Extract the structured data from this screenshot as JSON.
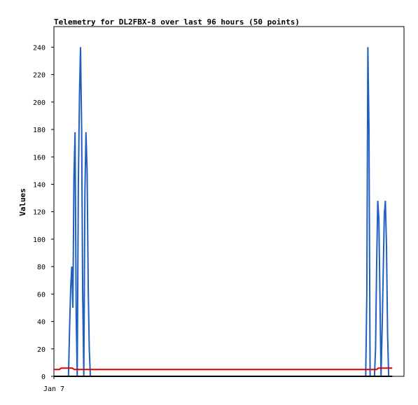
{
  "chart_data": {
    "type": "line",
    "title": "Telemetry for DL2FBX-8 over last 96 hours (50 points)",
    "xlabel": "",
    "ylabel": "Values",
    "x_tick_labels": [
      "Jan 7"
    ],
    "ylim": [
      0,
      255
    ],
    "y_ticks": [
      0,
      20,
      40,
      60,
      80,
      100,
      120,
      140,
      160,
      180,
      200,
      220,
      240
    ],
    "grid": false,
    "legend": "none",
    "x_range_hours": [
      0,
      96
    ],
    "series": [
      {
        "color": "#1f5fbf",
        "x": [
          4.0,
          4.3,
          4.6,
          4.9,
          5.2,
          5.5,
          5.8,
          6.1,
          6.4,
          6.7,
          7.0,
          7.3,
          7.6,
          7.9,
          8.2,
          8.5,
          8.8,
          9.1,
          9.4,
          9.7,
          10.0,
          10.3,
          10.6,
          10.9,
          11.2,
          85.5,
          85.8,
          86.1,
          86.4,
          86.7,
          87.0,
          87.3,
          87.6,
          87.9,
          88.2,
          88.5,
          88.8,
          89.1,
          89.4,
          89.7,
          90.0,
          90.3,
          90.6,
          90.9,
          91.2,
          91.5,
          91.8,
          92.1,
          92.4,
          92.7
        ],
        "values": [
          0,
          35,
          65,
          80,
          50,
          145,
          178,
          45,
          0,
          140,
          205,
          240,
          180,
          60,
          0,
          135,
          178,
          150,
          65,
          20,
          0,
          0,
          0,
          0,
          0,
          0,
          60,
          240,
          180,
          0,
          0,
          0,
          0,
          0,
          20,
          80,
          128,
          115,
          60,
          0,
          35,
          75,
          118,
          128,
          95,
          30,
          0,
          0,
          0,
          0
        ]
      },
      {
        "color": "#e00000",
        "x": [
          0,
          1.5,
          2.0,
          5.0,
          5.6,
          87.0,
          88.5,
          89.0,
          92.8
        ],
        "values": [
          5,
          5,
          6,
          6,
          5,
          5,
          5,
          6,
          6
        ]
      },
      {
        "color": "#000000",
        "x": [
          0,
          92.8
        ],
        "values": [
          0,
          0
        ]
      }
    ]
  }
}
